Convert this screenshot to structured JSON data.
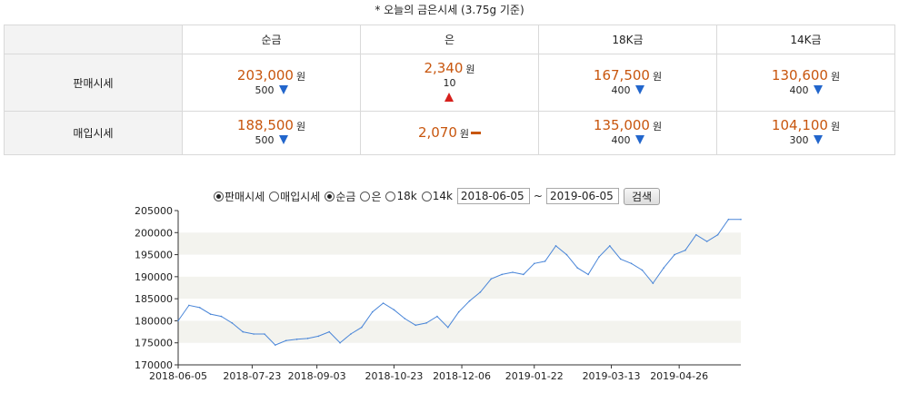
{
  "title": "* 오늘의 금은시세 (3.75g 기준)",
  "table": {
    "headers": [
      "순금",
      "은",
      "18K금",
      "14K금"
    ],
    "rows": [
      {
        "label": "판매시세",
        "cells": [
          {
            "price": "203,000",
            "unit": "원",
            "change": "500",
            "trend": "down"
          },
          {
            "price": "2,340",
            "unit": "원",
            "change": "10",
            "trend": "up"
          },
          {
            "price": "167,500",
            "unit": "원",
            "change": "400",
            "trend": "down"
          },
          {
            "price": "130,600",
            "unit": "원",
            "change": "400",
            "trend": "down"
          }
        ]
      },
      {
        "label": "매입시세",
        "cells": [
          {
            "price": "188,500",
            "unit": "원",
            "change": "500",
            "trend": "down"
          },
          {
            "price": "2,070",
            "unit": "원",
            "change": "",
            "trend": "flat"
          },
          {
            "price": "135,000",
            "unit": "원",
            "change": "400",
            "trend": "down"
          },
          {
            "price": "104,100",
            "unit": "원",
            "change": "300",
            "trend": "down"
          }
        ]
      }
    ]
  },
  "controls": {
    "price_type": [
      {
        "label": "판매시세",
        "checked": true
      },
      {
        "label": "매입시세",
        "checked": false
      }
    ],
    "metal": [
      {
        "label": "순금",
        "checked": true
      },
      {
        "label": "은",
        "checked": false
      },
      {
        "label": "18k",
        "checked": false
      },
      {
        "label": "14k",
        "checked": false
      }
    ],
    "date_from": "2018-06-05",
    "separator": "~",
    "date_to": "2019-06-05",
    "search_label": "검색"
  },
  "chart_data": {
    "type": "line",
    "yticks": [
      "205000",
      "200000",
      "195000",
      "190000",
      "185000",
      "180000",
      "175000",
      "170000"
    ],
    "ylim": [
      170000,
      205000
    ],
    "xticks": [
      "2018-06-05",
      "2018-07-23",
      "2018-09-03",
      "2018-10-23",
      "2018-12-06",
      "2019-01-22",
      "2019-03-13",
      "2019-04-26"
    ],
    "grid": "alternating horizontal bands",
    "series": [
      {
        "color": "#4a86d8",
        "x": [
          "2018-06-05",
          "2018-06-12",
          "2018-06-19",
          "2018-06-26",
          "2018-07-03",
          "2018-07-10",
          "2018-07-17",
          "2018-07-24",
          "2018-07-31",
          "2018-08-07",
          "2018-08-14",
          "2018-08-21",
          "2018-08-28",
          "2018-09-04",
          "2018-09-11",
          "2018-09-18",
          "2018-09-25",
          "2018-10-02",
          "2018-10-09",
          "2018-10-16",
          "2018-10-23",
          "2018-10-30",
          "2018-11-06",
          "2018-11-13",
          "2018-11-20",
          "2018-11-27",
          "2018-12-04",
          "2018-12-11",
          "2018-12-18",
          "2018-12-25",
          "2019-01-01",
          "2019-01-08",
          "2019-01-15",
          "2019-01-22",
          "2019-01-29",
          "2019-02-05",
          "2019-02-12",
          "2019-02-19",
          "2019-02-26",
          "2019-03-05",
          "2019-03-12",
          "2019-03-19",
          "2019-03-26",
          "2019-04-02",
          "2019-04-09",
          "2019-04-16",
          "2019-04-23",
          "2019-04-30",
          "2019-05-07",
          "2019-05-14",
          "2019-05-21",
          "2019-05-28",
          "2019-06-05"
        ],
        "values": [
          180000,
          183500,
          183000,
          181500,
          181000,
          179500,
          177500,
          177000,
          177000,
          174500,
          175500,
          175800,
          176000,
          176500,
          177500,
          175000,
          177000,
          178500,
          182000,
          184000,
          182500,
          180500,
          179000,
          179500,
          181000,
          178500,
          182000,
          184500,
          186500,
          189500,
          190500,
          191000,
          190500,
          193000,
          193500,
          197000,
          195000,
          192000,
          190500,
          194500,
          197000,
          194000,
          193000,
          191500,
          188500,
          192000,
          195000,
          196000,
          199500,
          198000,
          199500,
          203000,
          203000
        ]
      }
    ]
  }
}
